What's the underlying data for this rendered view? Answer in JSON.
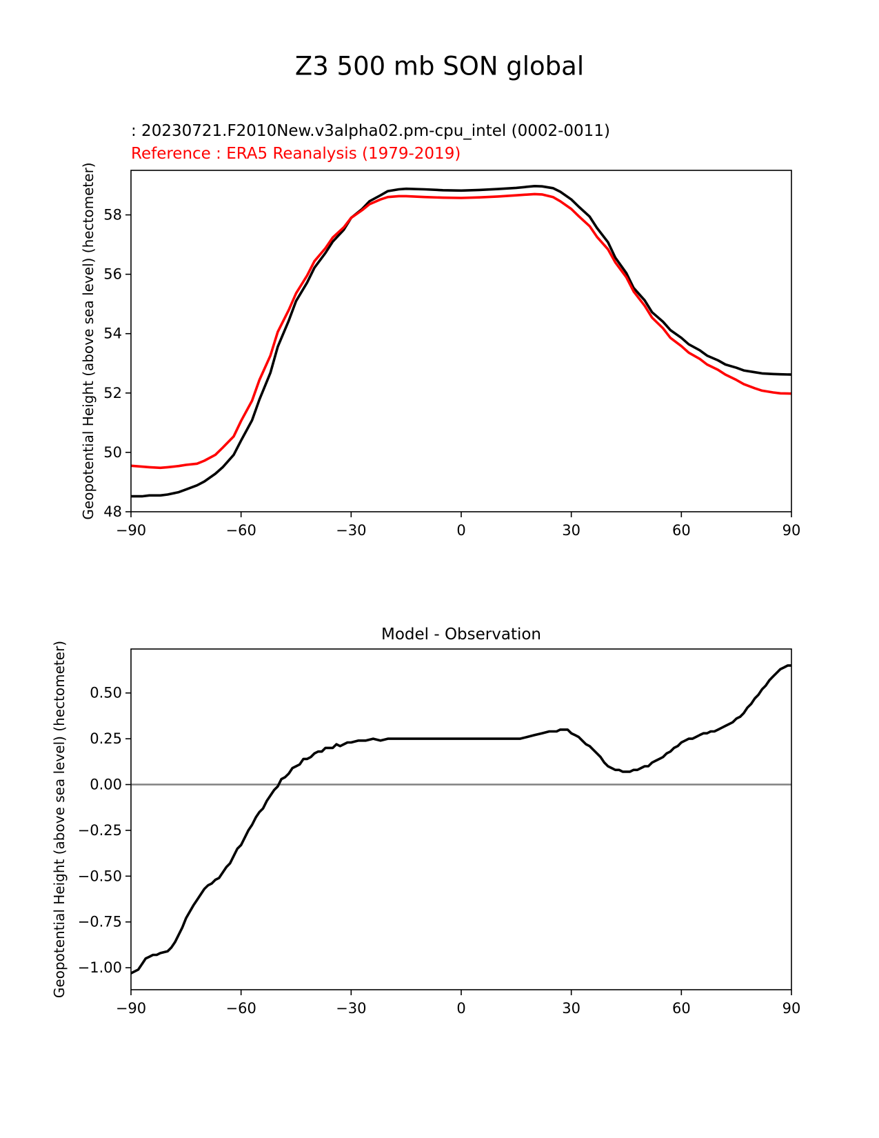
{
  "figure": {
    "suptitle": "Z3 500 mb SON global"
  },
  "colors": {
    "test": "#000000",
    "reference": "#ff0000",
    "zero_line": "#808080",
    "axes": "#000000"
  },
  "chart_data": [
    {
      "type": "line",
      "title": "",
      "test_label": " : 20230721.F2010New.v3alpha02.pm-cpu_intel (0002-0011)",
      "reference_label": "Reference : ERA5 Reanalysis (1979-2019)",
      "xlabel": "",
      "ylabel": "Geopotential Height (above sea level) (hectometer)",
      "xlim": [
        -90,
        90
      ],
      "ylim": [
        48,
        59.5
      ],
      "xticks": [
        -90,
        -60,
        -30,
        0,
        30,
        60,
        90
      ],
      "xtick_labels": [
        "−90",
        "−60",
        "−30",
        "0",
        "30",
        "60",
        "90"
      ],
      "yticks": [
        48,
        50,
        52,
        54,
        56,
        58
      ],
      "ytick_labels": [
        "48",
        "50",
        "52",
        "54",
        "56",
        "58"
      ],
      "series": [
        {
          "name": "test",
          "color": "#000000",
          "x": [
            -90,
            -87,
            -85,
            -82,
            -80,
            -77,
            -75,
            -72,
            -70,
            -67,
            -65,
            -62,
            -60,
            -57,
            -55,
            -52,
            -50,
            -47,
            -45,
            -42,
            -40,
            -37,
            -35,
            -32,
            -30,
            -27,
            -25,
            -22,
            -20,
            -17,
            -15,
            -10,
            -5,
            0,
            5,
            10,
            15,
            20,
            22,
            25,
            27,
            30,
            32,
            35,
            37,
            40,
            42,
            45,
            47,
            50,
            52,
            55,
            57,
            60,
            62,
            65,
            67,
            70,
            72,
            75,
            77,
            80,
            82,
            85,
            87,
            90
          ],
          "y": [
            48.52,
            48.52,
            48.55,
            48.55,
            48.58,
            48.66,
            48.75,
            48.89,
            49.02,
            49.28,
            49.5,
            49.92,
            50.4,
            51.08,
            51.78,
            52.68,
            53.56,
            54.44,
            55.1,
            55.72,
            56.22,
            56.72,
            57.1,
            57.5,
            57.9,
            58.2,
            58.46,
            58.66,
            58.8,
            58.86,
            58.88,
            58.86,
            58.83,
            58.82,
            58.84,
            58.87,
            58.91,
            58.97,
            58.96,
            58.9,
            58.78,
            58.52,
            58.28,
            57.94,
            57.56,
            57.08,
            56.56,
            56.04,
            55.54,
            55.12,
            54.72,
            54.4,
            54.12,
            53.86,
            53.64,
            53.44,
            53.26,
            53.1,
            52.96,
            52.85,
            52.76,
            52.7,
            52.66,
            52.64,
            52.63,
            52.62
          ]
        },
        {
          "name": "reference",
          "color": "#ff0000",
          "x": [
            -90,
            -87,
            -85,
            -82,
            -80,
            -77,
            -75,
            -72,
            -70,
            -67,
            -65,
            -62,
            -60,
            -57,
            -55,
            -52,
            -50,
            -47,
            -45,
            -42,
            -40,
            -37,
            -35,
            -32,
            -30,
            -27,
            -25,
            -22,
            -20,
            -17,
            -15,
            -10,
            -5,
            0,
            5,
            10,
            15,
            20,
            22,
            25,
            27,
            30,
            32,
            35,
            37,
            40,
            42,
            45,
            47,
            50,
            52,
            55,
            57,
            60,
            62,
            65,
            67,
            70,
            72,
            75,
            77,
            80,
            82,
            85,
            87,
            90
          ],
          "y": [
            49.55,
            49.52,
            49.5,
            49.48,
            49.5,
            49.54,
            49.58,
            49.62,
            49.72,
            49.92,
            50.16,
            50.54,
            51.06,
            51.74,
            52.44,
            53.26,
            54.06,
            54.8,
            55.36,
            55.96,
            56.44,
            56.88,
            57.24,
            57.58,
            57.9,
            58.16,
            58.36,
            58.52,
            58.6,
            58.63,
            58.63,
            58.6,
            58.58,
            58.57,
            58.59,
            58.62,
            58.66,
            58.7,
            58.69,
            58.6,
            58.46,
            58.2,
            57.96,
            57.62,
            57.26,
            56.84,
            56.4,
            55.9,
            55.42,
            54.94,
            54.54,
            54.18,
            53.86,
            53.58,
            53.36,
            53.15,
            52.96,
            52.78,
            52.62,
            52.44,
            52.3,
            52.16,
            52.08,
            52.02,
            51.99,
            51.98
          ]
        }
      ]
    },
    {
      "type": "line",
      "title": "Model - Observation",
      "xlabel": "",
      "ylabel": "Geopotential Height (above sea level) (hectometer)",
      "xlim": [
        -90,
        90
      ],
      "ylim": [
        -1.12,
        0.74
      ],
      "xticks": [
        -90,
        -60,
        -30,
        0,
        30,
        60,
        90
      ],
      "xtick_labels": [
        "−90",
        "−60",
        "−30",
        "0",
        "30",
        "60",
        "90"
      ],
      "yticks": [
        -1.0,
        -0.75,
        -0.5,
        -0.25,
        0.0,
        0.25,
        0.5
      ],
      "ytick_labels": [
        "−1.00",
        "−0.75",
        "−0.50",
        "−0.25",
        "0.00",
        "0.25",
        "0.50"
      ],
      "zero_line": 0,
      "series": [
        {
          "name": "difference",
          "color": "#000000",
          "x": [
            -90,
            -88,
            -87,
            -86,
            -85,
            -84,
            -83,
            -82,
            -80,
            -79,
            -78,
            -77,
            -76,
            -75,
            -73,
            -72,
            -71,
            -70,
            -69,
            -68,
            -67,
            -66,
            -65,
            -64,
            -63,
            -62,
            -61,
            -60,
            -59,
            -58,
            -57,
            -56,
            -55,
            -54,
            -53,
            -52,
            -51,
            -50,
            -49,
            -48,
            -47,
            -46,
            -45,
            -44,
            -43,
            -42,
            -41,
            -40,
            -39,
            -38,
            -37,
            -36,
            -35,
            -34,
            -33,
            -32,
            -31,
            -30,
            -28,
            -26,
            -24,
            -22,
            -20,
            -18,
            -16,
            -14,
            -12,
            -10,
            -8,
            -6,
            -4,
            -2,
            0,
            2,
            4,
            6,
            8,
            10,
            12,
            14,
            16,
            18,
            20,
            22,
            24,
            26,
            27,
            28,
            29,
            30,
            31,
            32,
            33,
            34,
            35,
            36,
            37,
            38,
            39,
            40,
            41,
            42,
            43,
            44,
            45,
            46,
            47,
            48,
            49,
            50,
            51,
            52,
            53,
            54,
            55,
            56,
            57,
            58,
            59,
            60,
            61,
            62,
            63,
            64,
            65,
            66,
            67,
            68,
            69,
            70,
            71,
            72,
            73,
            74,
            75,
            76,
            77,
            78,
            79,
            80,
            81,
            82,
            83,
            84,
            85,
            86,
            87,
            88,
            89,
            90
          ],
          "y": [
            -1.03,
            -1.01,
            -0.98,
            -0.95,
            -0.94,
            -0.93,
            -0.93,
            -0.92,
            -0.91,
            -0.89,
            -0.86,
            -0.82,
            -0.78,
            -0.73,
            -0.66,
            -0.63,
            -0.6,
            -0.57,
            -0.55,
            -0.54,
            -0.52,
            -0.51,
            -0.48,
            -0.45,
            -0.43,
            -0.39,
            -0.35,
            -0.33,
            -0.29,
            -0.25,
            -0.22,
            -0.18,
            -0.15,
            -0.13,
            -0.09,
            -0.06,
            -0.03,
            -0.01,
            0.03,
            0.04,
            0.06,
            0.09,
            0.1,
            0.11,
            0.14,
            0.14,
            0.15,
            0.17,
            0.18,
            0.18,
            0.2,
            0.2,
            0.2,
            0.22,
            0.21,
            0.22,
            0.23,
            0.23,
            0.24,
            0.24,
            0.25,
            0.24,
            0.25,
            0.25,
            0.25,
            0.25,
            0.25,
            0.25,
            0.25,
            0.25,
            0.25,
            0.25,
            0.25,
            0.25,
            0.25,
            0.25,
            0.25,
            0.25,
            0.25,
            0.25,
            0.25,
            0.26,
            0.27,
            0.28,
            0.29,
            0.29,
            0.3,
            0.3,
            0.3,
            0.28,
            0.27,
            0.26,
            0.24,
            0.22,
            0.21,
            0.19,
            0.17,
            0.15,
            0.12,
            0.1,
            0.09,
            0.08,
            0.08,
            0.07,
            0.07,
            0.07,
            0.08,
            0.08,
            0.09,
            0.1,
            0.1,
            0.12,
            0.13,
            0.14,
            0.15,
            0.17,
            0.18,
            0.2,
            0.21,
            0.23,
            0.24,
            0.25,
            0.25,
            0.26,
            0.27,
            0.28,
            0.28,
            0.29,
            0.29,
            0.3,
            0.31,
            0.32,
            0.33,
            0.34,
            0.36,
            0.37,
            0.39,
            0.42,
            0.44,
            0.47,
            0.49,
            0.52,
            0.54,
            0.57,
            0.59,
            0.61,
            0.63,
            0.64,
            0.65,
            0.65
          ]
        }
      ]
    }
  ]
}
